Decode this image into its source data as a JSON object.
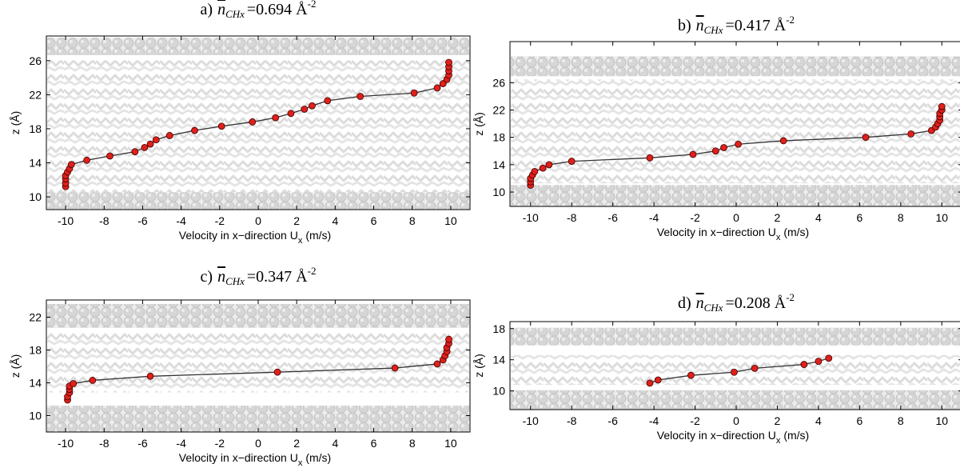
{
  "chart_data": [
    {
      "type": "line",
      "title": {
        "label": "a)",
        "symbol": "n",
        "subscript": "CHx",
        "value": "=0.694 Å",
        "superscript": "-2"
      },
      "xlabel": {
        "text": "Velocity in x−direction U",
        "subscript": "x",
        "unit": "(m/s)"
      },
      "ylabel": "z (Å)",
      "x": [
        -10,
        -10,
        -10,
        -10,
        -9.9,
        -9.8,
        -9.7,
        -8.9,
        -7.7,
        -6.4,
        -5.9,
        -5.6,
        -5.3,
        -4.6,
        -3.3,
        -1.9,
        -0.3,
        0.9,
        1.7,
        2.4,
        2.8,
        3.6,
        5.3,
        8.1,
        9.3,
        9.6,
        9.8,
        9.9,
        9.9,
        9.9,
        9.9
      ],
      "values": [
        11.2,
        11.6,
        12.1,
        12.5,
        12.9,
        13.3,
        13.8,
        14.3,
        14.8,
        15.3,
        15.8,
        16.2,
        16.7,
        17.2,
        17.8,
        18.3,
        18.8,
        19.3,
        19.8,
        20.3,
        20.7,
        21.3,
        21.8,
        22.2,
        22.8,
        23.3,
        23.8,
        24.3,
        24.8,
        25.3,
        25.8
      ],
      "line_color": "#333333",
      "marker_color": "#e0201b",
      "xlim": [
        -11,
        11
      ],
      "ylim": [
        8.5,
        28.9
      ],
      "xticks": [
        -10,
        -8,
        -6,
        -4,
        -2,
        0,
        2,
        4,
        6,
        8,
        10
      ],
      "yticks": [
        10,
        14,
        18,
        22,
        26
      ]
    },
    {
      "type": "line",
      "title": {
        "label": "b)",
        "symbol": "n",
        "subscript": "CHx",
        "value": "=0.417 Å",
        "superscript": "-2"
      },
      "xlabel": {
        "text": "Velocity in x−direction U",
        "subscript": "x",
        "unit": "(m/s)"
      },
      "ylabel": "z (Å)",
      "x": [
        -10,
        -10,
        -10,
        -9.9,
        -9.8,
        -9.4,
        -9.1,
        -8.0,
        -4.2,
        -2.1,
        -1.0,
        -0.6,
        0.1,
        2.3,
        6.3,
        8.5,
        9.5,
        9.7,
        9.8,
        9.9,
        9.9,
        9.9,
        10.0,
        10.0
      ],
      "values": [
        11.0,
        11.5,
        12.0,
        12.5,
        13.0,
        13.5,
        14.0,
        14.5,
        15.0,
        15.5,
        16.0,
        16.5,
        17.0,
        17.5,
        18.0,
        18.5,
        19.0,
        19.5,
        20.0,
        20.5,
        21.0,
        21.5,
        22.0,
        22.5
      ],
      "line_color": "#333333",
      "marker_color": "#e0201b",
      "xlim": [
        -11,
        11
      ],
      "ylim": [
        7.9,
        32
      ],
      "xticks": [
        -10,
        -8,
        -6,
        -4,
        -2,
        0,
        2,
        4,
        6,
        8,
        10
      ],
      "yticks": [
        10,
        14,
        18,
        22,
        26
      ]
    },
    {
      "type": "line",
      "title": {
        "label": "c)",
        "symbol": "n",
        "subscript": "CHx",
        "value": "=0.347 Å",
        "superscript": "-2"
      },
      "xlabel": {
        "text": "Velocity in x−direction U",
        "subscript": "x",
        "unit": "(m/s)"
      },
      "ylabel": "z (Å)",
      "x": [
        -9.9,
        -9.9,
        -9.8,
        -9.8,
        -9.8,
        -9.6,
        -8.6,
        -5.6,
        1.0,
        7.1,
        9.3,
        9.6,
        9.7,
        9.8,
        9.8,
        9.9,
        9.9
      ],
      "values": [
        11.9,
        12.3,
        12.8,
        13.2,
        13.6,
        13.9,
        14.3,
        14.8,
        15.3,
        15.8,
        16.3,
        16.8,
        17.3,
        17.8,
        18.3,
        18.8,
        19.3
      ],
      "line_color": "#333333",
      "marker_color": "#e0201b",
      "xlim": [
        -11,
        11
      ],
      "ylim": [
        8,
        24.1
      ],
      "xticks": [
        -10,
        -8,
        -6,
        -4,
        -2,
        0,
        2,
        4,
        6,
        8,
        10
      ],
      "yticks": [
        10,
        14,
        18,
        22
      ]
    },
    {
      "type": "line",
      "title": {
        "label": "d)",
        "symbol": "n",
        "subscript": "CHx",
        "value": "=0.208 Å",
        "superscript": "-2"
      },
      "xlabel": {
        "text": "Velocity in x−direction U",
        "subscript": "x",
        "unit": "(m/s)"
      },
      "ylabel": "z (Å)",
      "x": [
        -4.2,
        -3.8,
        -2.2,
        -0.1,
        0.9,
        3.3,
        4.0,
        4.5
      ],
      "values": [
        11.0,
        11.4,
        12.0,
        12.4,
        12.9,
        13.4,
        13.8,
        14.2
      ],
      "line_color": "#333333",
      "marker_color": "#e0201b",
      "xlim": [
        -11,
        11
      ],
      "ylim": [
        7.6,
        18.9
      ],
      "xticks": [
        -10,
        -8,
        -6,
        -4,
        -2,
        0,
        2,
        4,
        6,
        8,
        10
      ],
      "yticks": [
        10,
        14,
        18
      ]
    }
  ]
}
